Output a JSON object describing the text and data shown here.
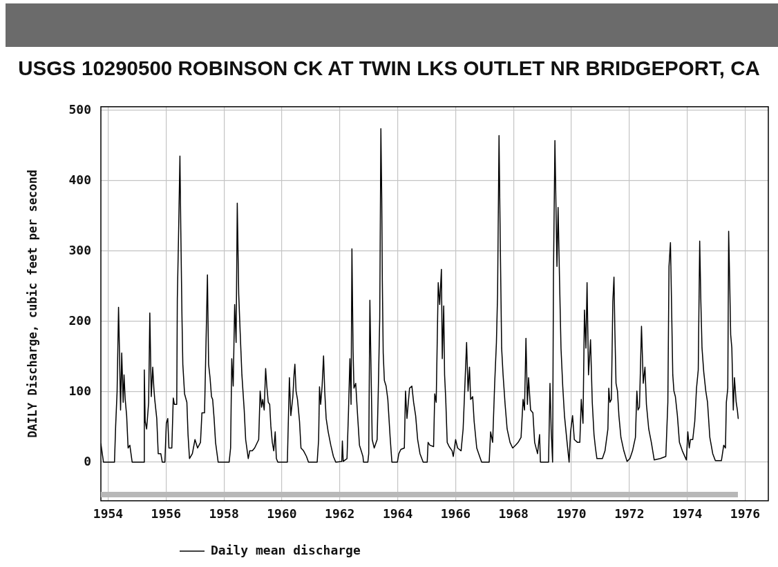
{
  "chart_data": {
    "type": "line",
    "title": "USGS 10290500 ROBINSON CK AT TWIN LKS OUTLET NR BRIDGEPORT, CA",
    "ylabel": "DAILY Discharge, cubic feet per second",
    "x": [
      1953.75,
      1953.84,
      1954.22,
      1954.26,
      1954.31,
      1954.36,
      1954.39,
      1954.43,
      1954.47,
      1954.52,
      1954.55,
      1954.59,
      1954.64,
      1954.69,
      1954.75,
      1954.83,
      1955.23,
      1955.25,
      1955.28,
      1955.33,
      1955.4,
      1955.44,
      1955.49,
      1955.54,
      1955.58,
      1955.61,
      1955.68,
      1955.73,
      1955.82,
      1955.87,
      1955.96,
      1956.01,
      1956.06,
      1956.1,
      1956.2,
      1956.25,
      1956.29,
      1956.37,
      1956.39,
      1956.43,
      1956.48,
      1956.51,
      1956.55,
      1956.58,
      1956.64,
      1956.72,
      1956.76,
      1956.81,
      1956.91,
      1957.0,
      1957.09,
      1957.19,
      1957.24,
      1957.33,
      1957.43,
      1957.47,
      1957.52,
      1957.57,
      1957.61,
      1957.66,
      1957.71,
      1957.8,
      1958.18,
      1958.23,
      1958.27,
      1958.32,
      1958.37,
      1958.42,
      1958.46,
      1958.51,
      1958.56,
      1958.62,
      1958.7,
      1958.75,
      1958.84,
      1958.89,
      1958.98,
      1959.06,
      1959.2,
      1959.25,
      1959.3,
      1959.34,
      1959.39,
      1959.44,
      1959.48,
      1959.53,
      1959.58,
      1959.62,
      1959.67,
      1959.72,
      1959.77,
      1959.81,
      1959.86,
      1960.19,
      1960.26,
      1960.31,
      1960.38,
      1960.42,
      1960.45,
      1960.49,
      1960.54,
      1960.61,
      1960.66,
      1960.75,
      1960.85,
      1960.92,
      1961.22,
      1961.27,
      1961.3,
      1961.34,
      1961.39,
      1961.44,
      1961.48,
      1961.53,
      1961.6,
      1961.69,
      1961.78,
      1961.86,
      1962.07,
      1962.09,
      1962.12,
      1962.25,
      1962.3,
      1962.35,
      1962.39,
      1962.42,
      1962.46,
      1962.49,
      1962.55,
      1962.61,
      1962.68,
      1962.74,
      1962.8,
      1962.82,
      1962.97,
      1963.0,
      1963.04,
      1963.08,
      1963.12,
      1963.19,
      1963.29,
      1963.33,
      1963.38,
      1963.42,
      1963.45,
      1963.47,
      1963.5,
      1963.54,
      1963.6,
      1963.66,
      1963.74,
      1963.8,
      1963.99,
      1964.04,
      1964.11,
      1964.23,
      1964.27,
      1964.32,
      1964.41,
      1964.49,
      1964.55,
      1964.62,
      1964.69,
      1964.77,
      1964.88,
      1965.02,
      1965.05,
      1965.11,
      1965.24,
      1965.28,
      1965.33,
      1965.4,
      1965.45,
      1965.51,
      1965.54,
      1965.59,
      1965.62,
      1965.66,
      1965.71,
      1965.78,
      1965.88,
      1965.92,
      1966.0,
      1966.07,
      1966.19,
      1966.26,
      1966.32,
      1966.38,
      1966.43,
      1966.48,
      1966.52,
      1966.59,
      1966.64,
      1966.73,
      1966.83,
      1966.9,
      1967.16,
      1967.21,
      1967.28,
      1967.35,
      1967.41,
      1967.45,
      1967.5,
      1967.54,
      1967.59,
      1967.64,
      1967.71,
      1967.78,
      1967.88,
      1967.97,
      1968.07,
      1968.16,
      1968.26,
      1968.33,
      1968.38,
      1968.43,
      1968.48,
      1968.52,
      1968.59,
      1968.67,
      1968.73,
      1968.83,
      1968.9,
      1968.93,
      1969.21,
      1969.26,
      1969.3,
      1969.35,
      1969.38,
      1969.43,
      1969.5,
      1969.54,
      1969.59,
      1969.64,
      1969.7,
      1969.76,
      1969.85,
      1969.92,
      1969.97,
      1970.04,
      1970.1,
      1970.21,
      1970.29,
      1970.34,
      1970.4,
      1970.45,
      1970.5,
      1970.54,
      1970.59,
      1970.66,
      1970.72,
      1970.78,
      1970.83,
      1970.88,
      1971.07,
      1971.16,
      1971.26,
      1971.29,
      1971.33,
      1971.38,
      1971.43,
      1971.47,
      1971.5,
      1971.54,
      1971.59,
      1971.64,
      1971.71,
      1971.81,
      1971.92,
      1972.02,
      1972.11,
      1972.21,
      1972.26,
      1972.3,
      1972.35,
      1972.42,
      1972.48,
      1972.54,
      1972.59,
      1972.67,
      1972.76,
      1972.86,
      1973.07,
      1973.26,
      1973.33,
      1973.37,
      1973.42,
      1973.45,
      1973.5,
      1973.54,
      1973.59,
      1973.66,
      1973.73,
      1973.83,
      1973.97,
      1974.02,
      1974.07,
      1974.11,
      1974.19,
      1974.26,
      1974.32,
      1974.38,
      1974.43,
      1974.47,
      1974.51,
      1974.57,
      1974.64,
      1974.7,
      1974.78,
      1974.88,
      1974.97,
      1975.18,
      1975.26,
      1975.32,
      1975.35,
      1975.4,
      1975.43,
      1975.47,
      1975.5,
      1975.54,
      1975.59,
      1975.63,
      1975.69,
      1975.73,
      1975.76
    ],
    "series": [
      {
        "name": "Daily mean discharge",
        "color": "#000000",
        "values": [
          26,
          0,
          0,
          51,
          100,
          220,
          162,
          74,
          155,
          85,
          124,
          89,
          66,
          20,
          24,
          0,
          0,
          131,
          58,
          47,
          85,
          212,
          93,
          135,
          105,
          89,
          62,
          12,
          12,
          0,
          0,
          55,
          62,
          20,
          20,
          91,
          82,
          82,
          232,
          316,
          435,
          331,
          208,
          139,
          97,
          85,
          39,
          5,
          12,
          32,
          20,
          28,
          70,
          70,
          266,
          139,
          120,
          93,
          89,
          62,
          28,
          0,
          0,
          20,
          147,
          108,
          224,
          170,
          368,
          239,
          185,
          124,
          74,
          32,
          5,
          16,
          16,
          20,
          32,
          101,
          78,
          89,
          74,
          133,
          108,
          85,
          82,
          51,
          28,
          16,
          43,
          5,
          0,
          0,
          120,
          66,
          93,
          124,
          139,
          101,
          89,
          58,
          20,
          16,
          8,
          0,
          0,
          32,
          107,
          82,
          108,
          151,
          101,
          62,
          43,
          24,
          8,
          0,
          1,
          30,
          1,
          5,
          70,
          147,
          82,
          303,
          158,
          105,
          112,
          70,
          24,
          16,
          8,
          0,
          0,
          12,
          230,
          131,
          32,
          20,
          32,
          101,
          205,
          474,
          374,
          258,
          155,
          116,
          108,
          89,
          35,
          0,
          0,
          12,
          18,
          20,
          101,
          62,
          105,
          108,
          85,
          66,
          32,
          12,
          0,
          0,
          28,
          24,
          22,
          97,
          85,
          255,
          224,
          274,
          147,
          222,
          124,
          89,
          28,
          22,
          16,
          8,
          32,
          20,
          16,
          47,
          108,
          170,
          101,
          135,
          89,
          93,
          58,
          20,
          8,
          0,
          0,
          43,
          28,
          112,
          170,
          239,
          464,
          321,
          162,
          124,
          82,
          47,
          28,
          20,
          24,
          28,
          35,
          89,
          74,
          176,
          82,
          120,
          74,
          70,
          28,
          12,
          39,
          0,
          0,
          112,
          47,
          0,
          266,
          457,
          278,
          362,
          258,
          162,
          108,
          66,
          28,
          0,
          43,
          66,
          32,
          28,
          28,
          89,
          55,
          216,
          162,
          255,
          124,
          174,
          85,
          39,
          20,
          5,
          5,
          16,
          47,
          105,
          85,
          89,
          228,
          263,
          188,
          112,
          101,
          66,
          35,
          16,
          1,
          5,
          16,
          35,
          101,
          74,
          78,
          193,
          112,
          135,
          82,
          47,
          28,
          3,
          5,
          8,
          85,
          278,
          312,
          243,
          124,
          101,
          93,
          66,
          28,
          16,
          3,
          43,
          20,
          32,
          32,
          58,
          105,
          131,
          314,
          228,
          162,
          128,
          101,
          85,
          35,
          12,
          2,
          2,
          24,
          20,
          85,
          105,
          328,
          247,
          181,
          162,
          74,
          120,
          85,
          74,
          62
        ]
      }
    ],
    "xlim": [
      1953.75,
      1976.8
    ],
    "xticks": [
      1954,
      1956,
      1958,
      1960,
      1962,
      1964,
      1966,
      1968,
      1970,
      1972,
      1974,
      1976
    ],
    "ylim": [
      -55,
      505
    ],
    "yticks": [
      0,
      100,
      200,
      300,
      400,
      500
    ],
    "grid": true,
    "legend": "bottom"
  }
}
